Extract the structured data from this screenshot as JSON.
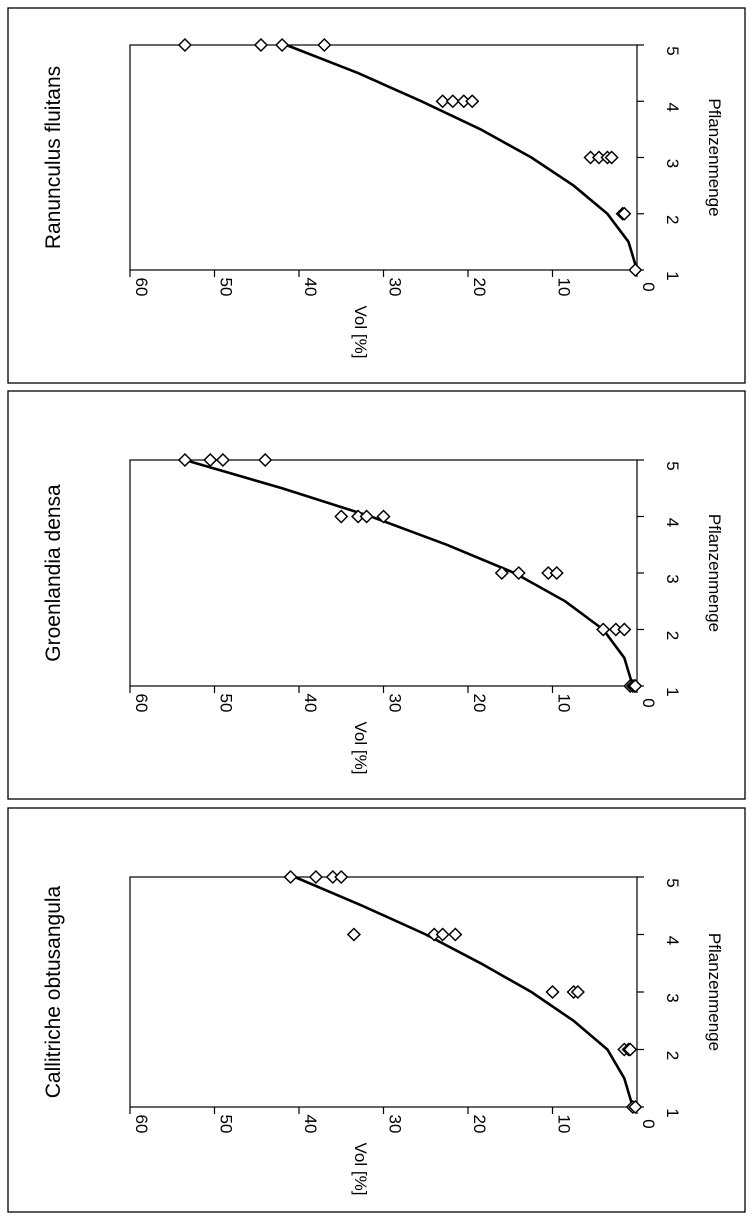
{
  "chart_data": [
    {
      "type": "scatter",
      "title": "Ranunculus fluitans",
      "xlabel": "Pflanzenmenge",
      "ylabel": "Vol [%]",
      "xlim": [
        1,
        5
      ],
      "ylim": [
        0,
        60
      ],
      "xticks": [
        "1",
        "2",
        "3",
        "4",
        "5"
      ],
      "yticks": [
        "0",
        "10",
        "20",
        "30",
        "40",
        "50",
        "60"
      ],
      "grid": false,
      "legend": "none",
      "series": [
        {
          "x": [
            1,
            2,
            2,
            3,
            3,
            3,
            3,
            4,
            4,
            4,
            4,
            5,
            5,
            5,
            5
          ],
          "y": [
            0.2,
            1.7,
            1.5,
            5.5,
            4.5,
            3.5,
            3.0,
            23.0,
            21.8,
            20.5,
            19.5,
            53.5,
            44.5,
            42.0,
            37.0
          ]
        }
      ],
      "trendline": {
        "x": [
          1.0,
          1.5,
          2.0,
          2.5,
          3.0,
          3.5,
          4.0,
          4.5,
          5.0
        ],
        "y": [
          0.0,
          1.0,
          3.5,
          7.5,
          12.5,
          18.5,
          25.5,
          33.0,
          41.5
        ]
      }
    },
    {
      "type": "scatter",
      "title": "Groenlandia densa",
      "xlabel": "Pflanzenmenge",
      "ylabel": "Vol [%]",
      "xlim": [
        1,
        5
      ],
      "ylim": [
        0,
        60
      ],
      "xticks": [
        "1",
        "2",
        "3",
        "4",
        "5"
      ],
      "yticks": [
        "0",
        "10",
        "20",
        "30",
        "40",
        "50",
        "60"
      ],
      "grid": false,
      "legend": "none",
      "series": [
        {
          "x": [
            1,
            1,
            1,
            1,
            2,
            2,
            2,
            3,
            3,
            3,
            3,
            4,
            4,
            4,
            4,
            5,
            5,
            5,
            5
          ],
          "y": [
            0.8,
            0.5,
            0.3,
            0.2,
            4.0,
            2.5,
            1.5,
            16.0,
            14.0,
            10.5,
            9.5,
            35.0,
            33.0,
            32.0,
            30.0,
            53.5,
            50.5,
            49.0,
            44.0
          ]
        }
      ],
      "trendline": {
        "x": [
          1.0,
          1.5,
          2.0,
          2.5,
          3.0,
          3.5,
          4.0,
          4.5,
          5.0
        ],
        "y": [
          0.5,
          1.5,
          4.0,
          8.5,
          14.5,
          22.5,
          31.5,
          42.0,
          53.5
        ]
      }
    },
    {
      "type": "scatter",
      "title": "Callitriche obtusangula",
      "xlabel": "Pflanzenmenge",
      "ylabel": "Vol [%]",
      "xlim": [
        1,
        5
      ],
      "ylim": [
        0,
        60
      ],
      "xticks": [
        "1",
        "2",
        "3",
        "4",
        "5"
      ],
      "yticks": [
        "0",
        "10",
        "20",
        "30",
        "40",
        "50",
        "60"
      ],
      "grid": false,
      "legend": "none",
      "series": [
        {
          "x": [
            1,
            1,
            2,
            2,
            2,
            3,
            3,
            3,
            4,
            4,
            4,
            4,
            5,
            5,
            5,
            5
          ],
          "y": [
            0.5,
            0.2,
            1.5,
            1.0,
            0.8,
            10.0,
            7.5,
            7.0,
            33.5,
            24.0,
            23.0,
            21.5,
            41.0,
            38.0,
            36.0,
            35.0
          ]
        }
      ],
      "trendline": {
        "x": [
          1.0,
          1.5,
          2.0,
          2.5,
          3.0,
          3.5,
          4.0,
          4.5,
          5.0
        ],
        "y": [
          0.5,
          1.5,
          3.5,
          7.5,
          12.5,
          18.5,
          25.0,
          32.5,
          40.5
        ]
      }
    }
  ]
}
